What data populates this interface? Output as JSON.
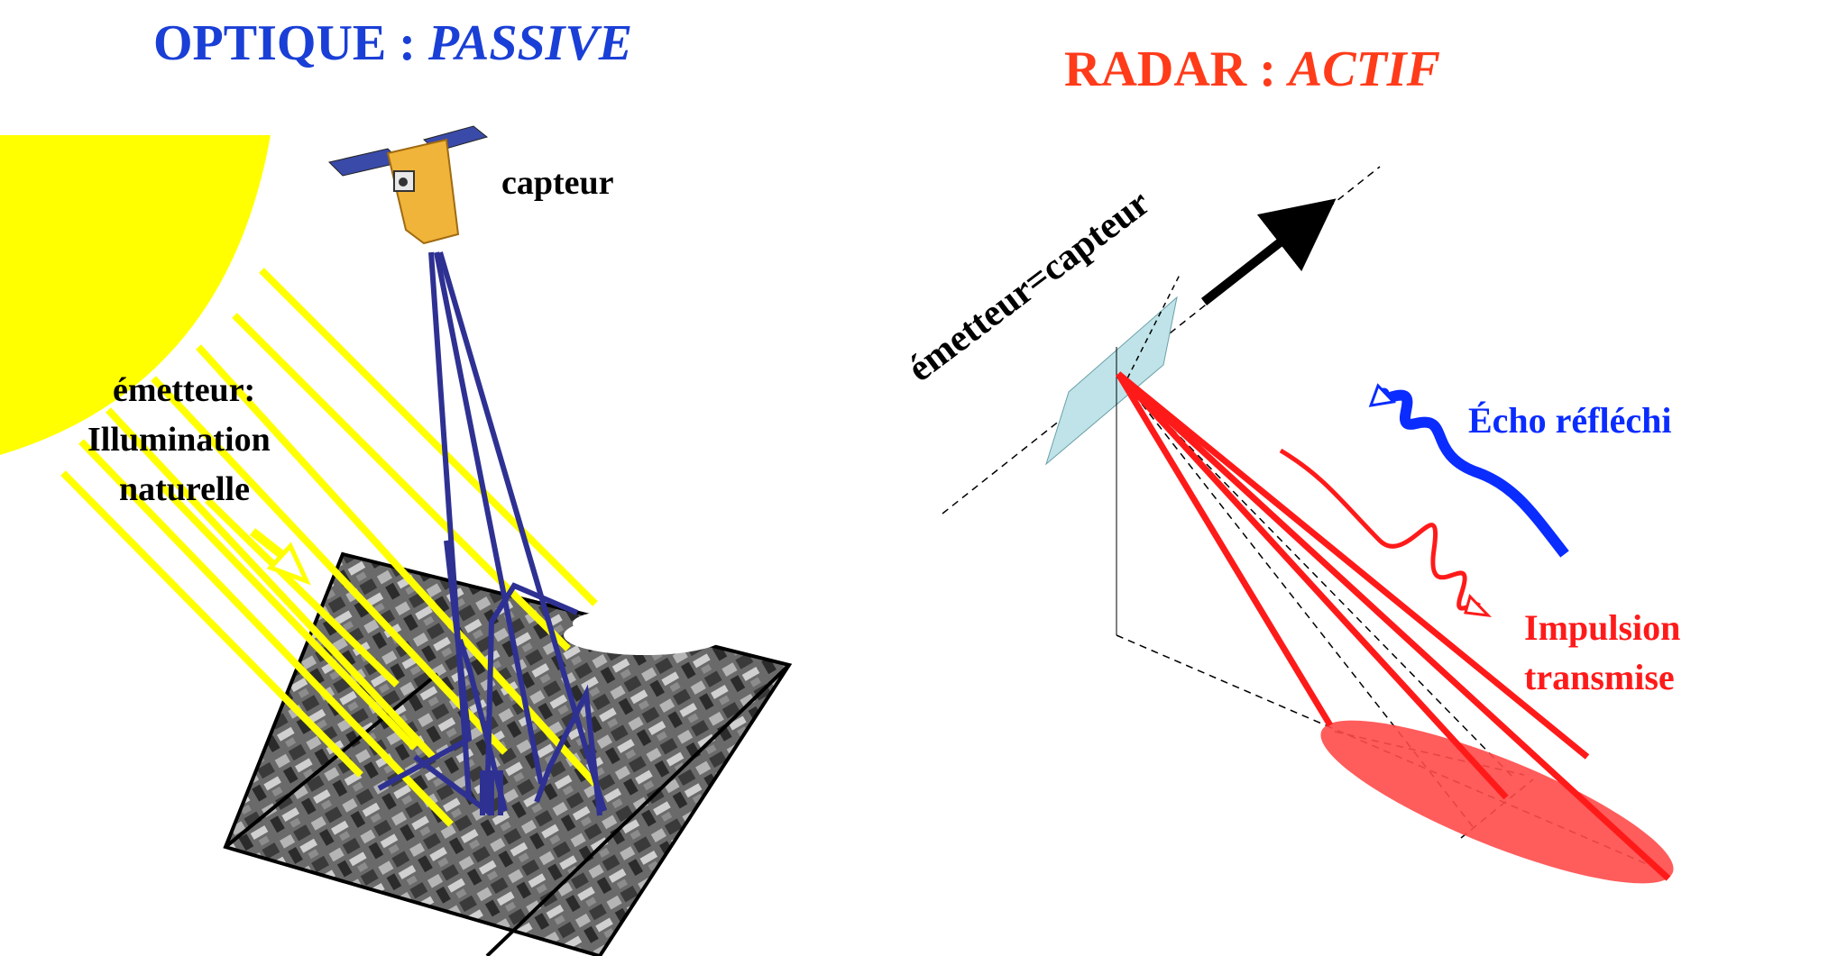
{
  "optical": {
    "title_main": "OPTIQUE : ",
    "title_italic": "PASSIVE",
    "sensor_label": "capteur",
    "emitter_line1": "émetteur:",
    "emitter_line2": "Illumination",
    "emitter_line3": "naturelle",
    "sun_color": "#ffff00",
    "ray_color": "#ffff00",
    "reflection_color": "#2e3192",
    "title_color": "#1a3fd6"
  },
  "radar": {
    "title_main": "RADAR : ",
    "title_italic": "ACTIF",
    "emitter_label": "émetteur=capteur",
    "echo_label": "Écho réfléchi",
    "pulse_line1": "Impulsion",
    "pulse_line2": "transmise",
    "title_color": "#ff3b1a",
    "pulse_color": "#ff1a1a",
    "echo_color": "#0a2cff",
    "antenna_color": "#bfe3e8",
    "footprint_color": "#ff4a4a"
  }
}
